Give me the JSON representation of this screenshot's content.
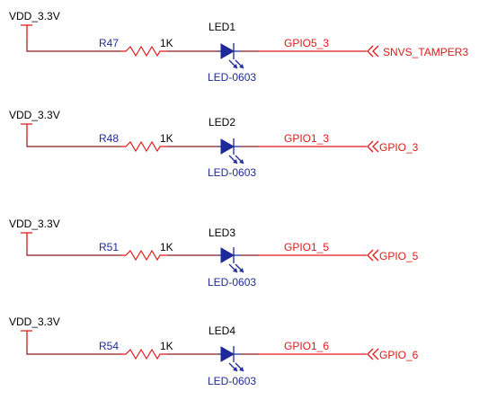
{
  "colors": {
    "net_wire": "#8b1a1a",
    "pin_red": "#e01818",
    "component_blue": "#1f2a9a",
    "text_black": "#000000"
  },
  "circuits": [
    {
      "supply": "VDD_3.3V",
      "resistor": "R47",
      "resistor_value": "1K",
      "led": "LED1",
      "package": "LED-0603",
      "net": "GPIO5_3",
      "port": "SNVS_TAMPER3"
    },
    {
      "supply": "VDD_3.3V",
      "resistor": "R48",
      "resistor_value": "1K",
      "led": "LED2",
      "package": "LED-0603",
      "net": "GPIO1_3",
      "port": "GPIO_3"
    },
    {
      "supply": "VDD_3.3V",
      "resistor": "R51",
      "resistor_value": "1K",
      "led": "LED3",
      "package": "LED-0603",
      "net": "GPIO1_5",
      "port": "GPIO_5"
    },
    {
      "supply": "VDD_3.3V",
      "resistor": "R54",
      "resistor_value": "1K",
      "led": "LED4",
      "package": "LED-0603",
      "net": "GPIO1_6",
      "port": "GPIO_6"
    }
  ]
}
